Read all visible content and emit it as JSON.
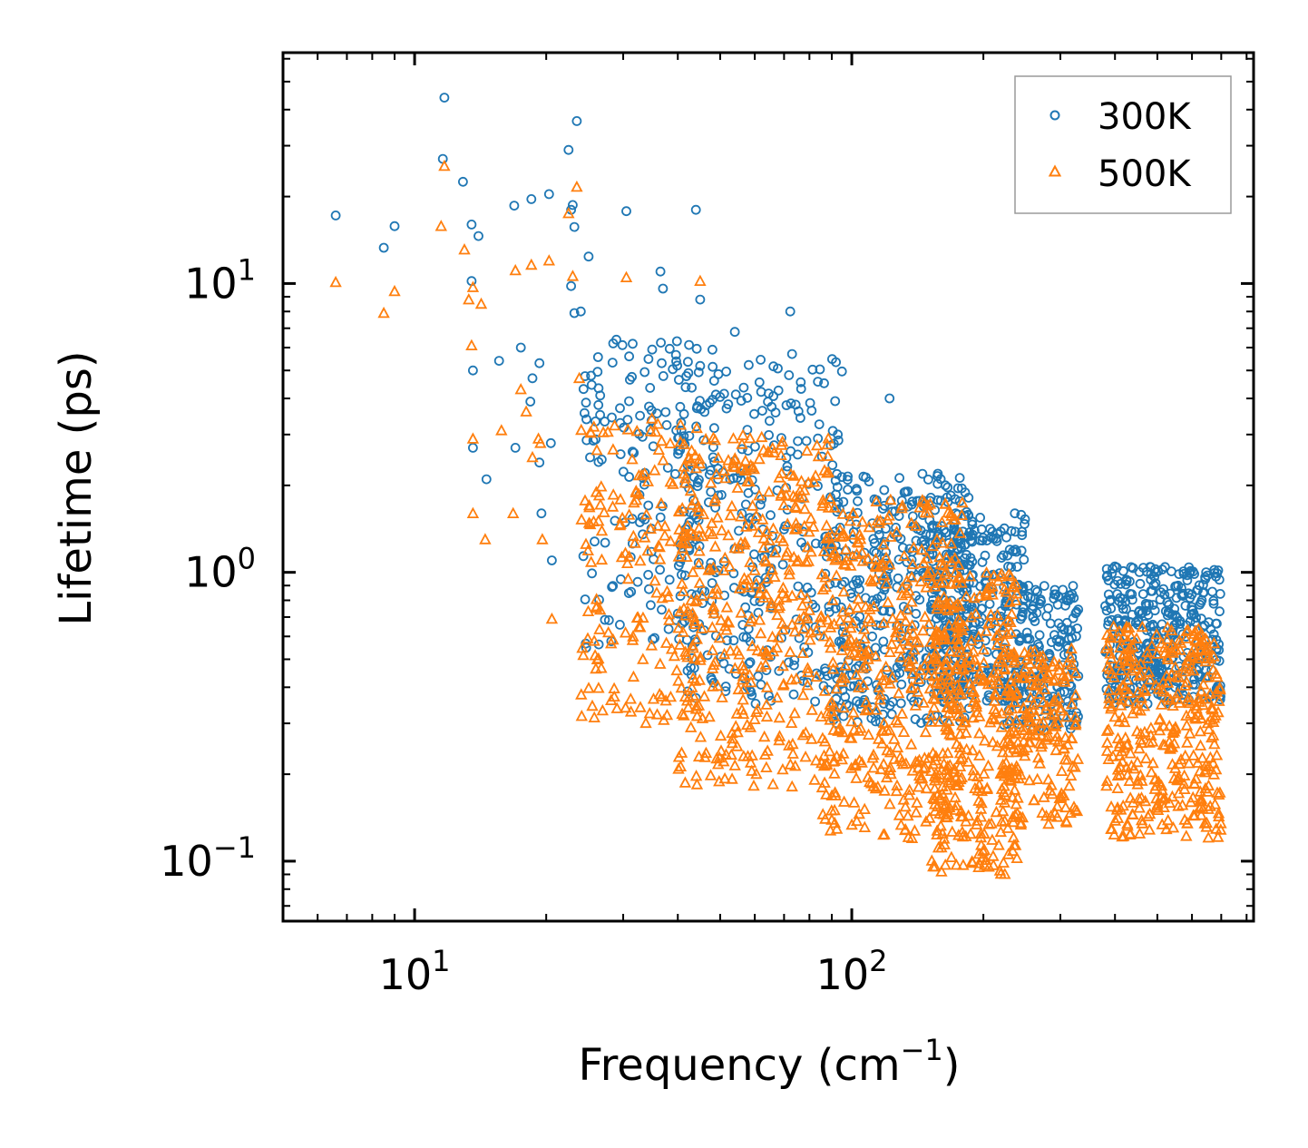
{
  "chart_data": {
    "type": "scatter",
    "title": "",
    "xlabel": {
      "main": "Frequency (cm",
      "sup": "−1",
      "tail": ")"
    },
    "ylabel": "Lifetime (ps)",
    "xscale": "log",
    "yscale": "log",
    "xlim": [
      5.0,
      830.0
    ],
    "ylim": [
      0.062,
      63.0
    ],
    "x_tick_labels": [
      {
        "value": 10,
        "base": "10",
        "exp": "1"
      },
      {
        "value": 100,
        "base": "10",
        "exp": "2"
      }
    ],
    "y_tick_labels": [
      {
        "value": 0.1,
        "base": "10",
        "exp": "−1"
      },
      {
        "value": 1,
        "base": "10",
        "exp": "0"
      },
      {
        "value": 10,
        "base": "10",
        "exp": "1"
      }
    ],
    "legend_position": "top-right",
    "series": [
      {
        "name": "300K",
        "color": "#1f77b4",
        "marker": "circle",
        "outliers": [
          [
            6.6,
            17.2
          ],
          [
            8.5,
            13.3
          ],
          [
            9.0,
            15.8
          ],
          [
            11.7,
            44.0
          ],
          [
            11.6,
            27.0
          ],
          [
            12.9,
            22.5
          ],
          [
            13.5,
            16.0
          ],
          [
            14.0,
            14.6
          ],
          [
            13.5,
            10.2
          ],
          [
            15.6,
            5.4
          ],
          [
            14.6,
            2.1
          ],
          [
            13.6,
            5.0
          ],
          [
            13.6,
            2.7
          ],
          [
            16.9,
            18.6
          ],
          [
            18.5,
            19.6
          ],
          [
            20.3,
            20.4
          ],
          [
            22.5,
            29.0
          ],
          [
            23.5,
            36.5
          ],
          [
            23.0,
            18.7
          ],
          [
            22.8,
            18.0
          ],
          [
            23.2,
            15.7
          ],
          [
            25.0,
            12.4
          ],
          [
            30.5,
            17.8
          ],
          [
            44.0,
            18.0
          ],
          [
            36.5,
            11.0
          ],
          [
            37.0,
            9.6
          ],
          [
            45.0,
            8.8
          ],
          [
            22.8,
            9.8
          ],
          [
            23.2,
            7.9
          ],
          [
            24.0,
            8.0
          ],
          [
            17.5,
            6.0
          ],
          [
            18.6,
            4.7
          ],
          [
            19.3,
            5.3
          ],
          [
            18.4,
            3.9
          ],
          [
            19.3,
            2.4
          ],
          [
            20.5,
            2.8
          ],
          [
            17.0,
            2.7
          ],
          [
            19.5,
            1.6
          ],
          [
            20.6,
            1.1
          ],
          [
            72.3,
            8.0
          ],
          [
            73.0,
            5.7
          ],
          [
            122.0,
            4.0
          ],
          [
            54.0,
            6.8
          ],
          [
            48.0,
            5.9
          ]
        ],
        "clusters": [
          {
            "x": [
              24,
              45
            ],
            "y": [
              0.5,
              6.5
            ],
            "n": 140
          },
          {
            "x": [
              40,
              95
            ],
            "y": [
              0.35,
              5.5
            ],
            "n": 320
          },
          {
            "x": [
              90,
              190
            ],
            "y": [
              0.3,
              2.2
            ],
            "n": 400
          },
          {
            "x": [
              150,
              250
            ],
            "y": [
              0.35,
              1.6
            ],
            "n": 260
          },
          {
            "x": [
              220,
              330
            ],
            "y": [
              0.28,
              0.9
            ],
            "n": 200
          },
          {
            "x": [
              380,
              700
            ],
            "y": [
              0.35,
              1.05
            ],
            "n": 380
          }
        ]
      },
      {
        "name": "500K",
        "color": "#ff7f0e",
        "marker": "triangle",
        "outliers": [
          [
            6.6,
            10.1
          ],
          [
            8.5,
            7.9
          ],
          [
            9.0,
            9.4
          ],
          [
            11.5,
            15.8
          ],
          [
            11.7,
            25.5
          ],
          [
            13.0,
            13.1
          ],
          [
            13.3,
            8.8
          ],
          [
            13.6,
            9.7
          ],
          [
            14.2,
            8.5
          ],
          [
            13.5,
            6.1
          ],
          [
            13.6,
            2.9
          ],
          [
            13.6,
            1.6
          ],
          [
            14.5,
            1.3
          ],
          [
            15.8,
            3.1
          ],
          [
            17.0,
            11.1
          ],
          [
            18.5,
            11.6
          ],
          [
            20.3,
            12.0
          ],
          [
            22.5,
            17.5
          ],
          [
            23.0,
            10.6
          ],
          [
            23.5,
            21.6
          ],
          [
            23.8,
            4.7
          ],
          [
            30.5,
            10.5
          ],
          [
            45.0,
            10.2
          ],
          [
            16.8,
            1.6
          ],
          [
            18.6,
            2.5
          ],
          [
            19.4,
            2.8
          ],
          [
            19.6,
            1.3
          ],
          [
            20.6,
            0.69
          ],
          [
            18.0,
            3.6
          ],
          [
            19.2,
            2.9
          ],
          [
            17.5,
            4.3
          ]
        ],
        "clusters": [
          {
            "x": [
              24,
              45
            ],
            "y": [
              0.3,
              3.5
            ],
            "n": 180
          },
          {
            "x": [
              40,
              90
            ],
            "y": [
              0.18,
              3.0
            ],
            "n": 380
          },
          {
            "x": [
              85,
              180
            ],
            "y": [
              0.12,
              1.8
            ],
            "n": 450
          },
          {
            "x": [
              150,
              240
            ],
            "y": [
              0.09,
              1.0
            ],
            "n": 300
          },
          {
            "x": [
              220,
              330
            ],
            "y": [
              0.13,
              0.55
            ],
            "n": 200
          },
          {
            "x": [
              380,
              700
            ],
            "y": [
              0.12,
              0.65
            ],
            "n": 380
          }
        ]
      }
    ]
  }
}
